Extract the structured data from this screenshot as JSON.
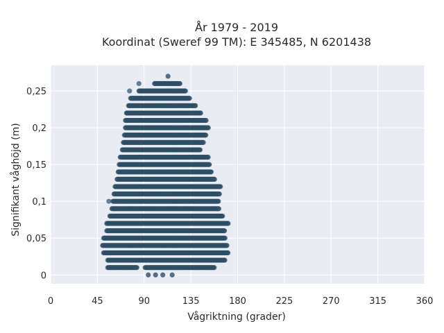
{
  "chart_data": {
    "type": "scatter",
    "title": "År 1979 - 2019",
    "subtitle": "Koordinat (Sweref 99 TM): E 345485, N 6201438",
    "xlabel": "Vågriktning (grader)",
    "ylabel": "Signifikant våghöjd (m)",
    "xlim": [
      0,
      360
    ],
    "ylim": [
      -0.012,
      0.285
    ],
    "x_ticks": [
      0,
      45,
      90,
      135,
      180,
      225,
      270,
      315,
      360
    ],
    "x_tick_labels": [
      "0",
      "45",
      "90",
      "135",
      "180",
      "225",
      "270",
      "315",
      "360"
    ],
    "y_ticks": [
      0,
      0.05,
      0.1,
      0.15,
      0.2,
      0.25
    ],
    "y_tick_labels": [
      "0",
      "0,05",
      "0,1",
      "0,15",
      "0,2",
      "0,25"
    ],
    "grid": true,
    "marker_color": "#2e4f66",
    "rows": [
      {
        "y": 0.0,
        "points": [
          94,
          101,
          108,
          117
        ]
      },
      {
        "y": 0.01,
        "x_range": [
          55,
          83
        ],
        "x_range2": [
          91,
          158
        ]
      },
      {
        "y": 0.02,
        "x_range": [
          55,
          168
        ]
      },
      {
        "y": 0.03,
        "x_range": [
          51,
          171
        ]
      },
      {
        "y": 0.04,
        "x_range": [
          50,
          170
        ]
      },
      {
        "y": 0.05,
        "x_range": [
          51,
          168
        ]
      },
      {
        "y": 0.06,
        "x_range": [
          54,
          168
        ]
      },
      {
        "y": 0.07,
        "x_range": [
          54,
          171
        ]
      },
      {
        "y": 0.08,
        "x_range": [
          57,
          166
        ]
      },
      {
        "y": 0.09,
        "x_range": [
          59,
          162
        ]
      },
      {
        "y": 0.1,
        "x_range": [
          60,
          162
        ]
      },
      {
        "y": 0.11,
        "x_range": [
          61,
          163
        ]
      },
      {
        "y": 0.12,
        "x_range": [
          62,
          164
        ]
      },
      {
        "y": 0.13,
        "x_range": [
          64,
          158
        ]
      },
      {
        "y": 0.14,
        "x_range": [
          65,
          155
        ]
      },
      {
        "y": 0.15,
        "x_range": [
          66,
          153
        ]
      },
      {
        "y": 0.16,
        "x_range": [
          67,
          152
        ]
      },
      {
        "y": 0.17,
        "x_range": [
          69,
          144
        ]
      },
      {
        "y": 0.18,
        "x_range": [
          70,
          147
        ]
      },
      {
        "y": 0.19,
        "x_range": [
          71,
          150
        ]
      },
      {
        "y": 0.2,
        "x_range": [
          72,
          152
        ]
      },
      {
        "y": 0.21,
        "x_range": [
          72,
          150
        ]
      },
      {
        "y": 0.22,
        "x_range": [
          73,
          145
        ]
      },
      {
        "y": 0.23,
        "x_range": [
          75,
          140
        ]
      },
      {
        "y": 0.24,
        "x_range": [
          77,
          134
        ]
      },
      {
        "y": 0.25,
        "x_range": [
          85,
          130
        ]
      },
      {
        "y": 0.26,
        "x_range": [
          100,
          125
        ]
      },
      {
        "y": 0.27,
        "points": [
          113
        ]
      }
    ],
    "outliers": [
      {
        "x": 73,
        "y": 0.14
      },
      {
        "x": 56,
        "y": 0.1
      },
      {
        "x": 85,
        "y": 0.26
      },
      {
        "x": 76,
        "y": 0.25
      },
      {
        "x": 79,
        "y": 0.24
      },
      {
        "x": 76,
        "y": 0.23
      },
      {
        "x": 74,
        "y": 0.22
      },
      {
        "x": 150,
        "y": 0.16
      },
      {
        "x": 170,
        "y": 0.03
      }
    ]
  }
}
